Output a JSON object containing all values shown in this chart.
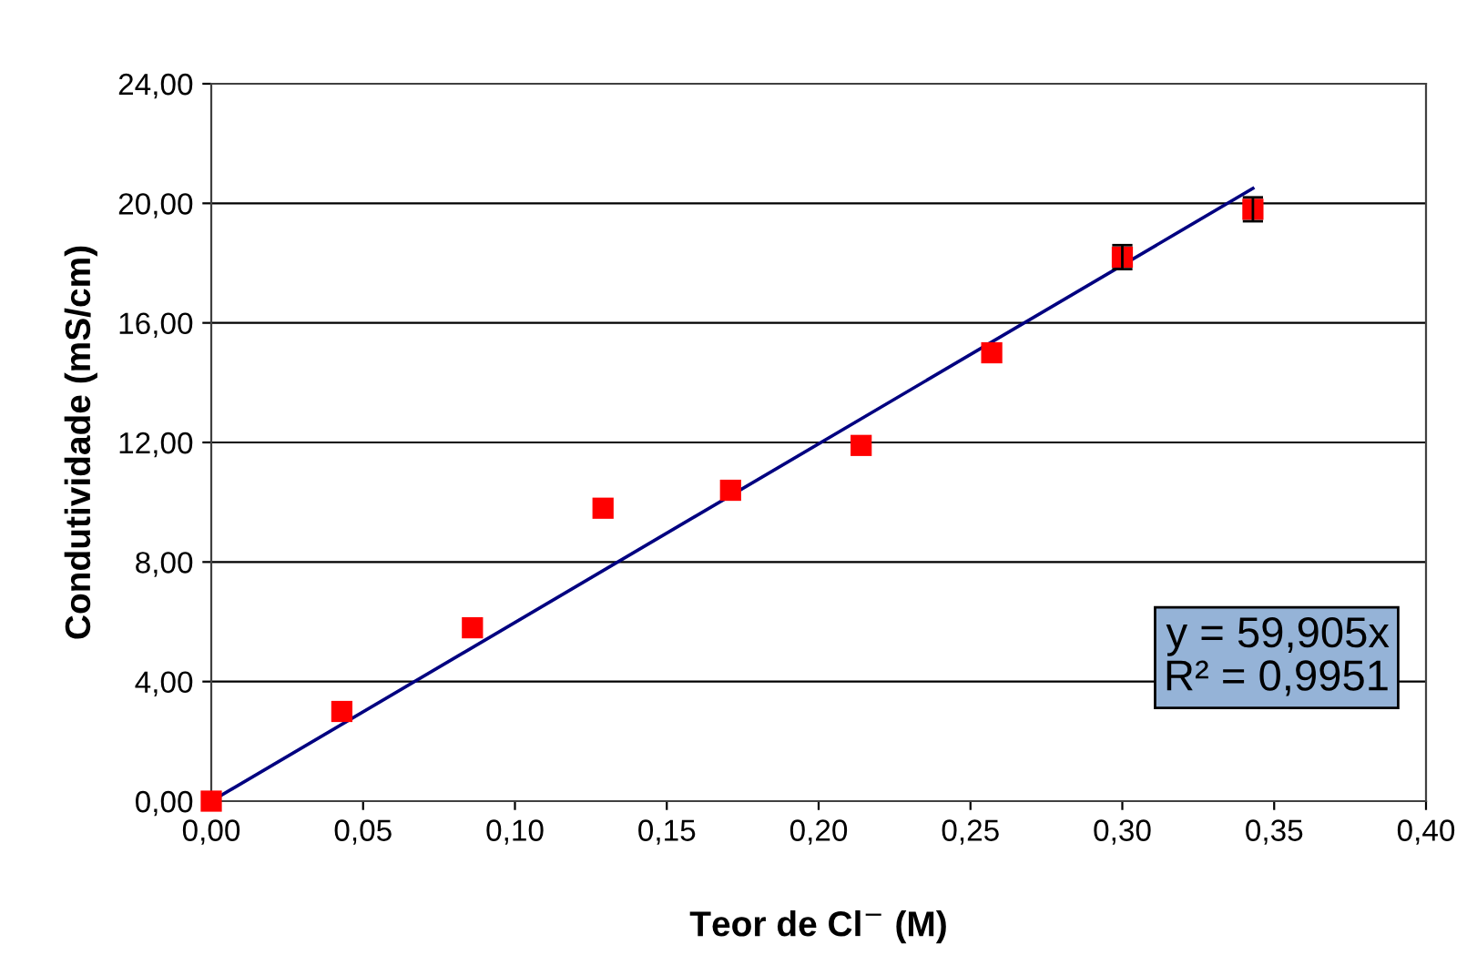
{
  "chart_data": {
    "type": "scatter",
    "xlabel": "Teor de Cl$^{−}$ (M)",
    "ylabel": "Condutividade (mS/cm)",
    "xlim": [
      0,
      0.4
    ],
    "ylim": [
      0,
      24
    ],
    "xticks": [
      {
        "value": 0,
        "label": "0,00"
      },
      {
        "value": 0.05,
        "label": "0,05"
      },
      {
        "value": 0.1,
        "label": "0,10"
      },
      {
        "value": 0.15,
        "label": "0,15"
      },
      {
        "value": 0.2,
        "label": "0,20"
      },
      {
        "value": 0.25,
        "label": "0,25"
      },
      {
        "value": 0.3,
        "label": "0,30"
      },
      {
        "value": 0.35,
        "label": "0,35"
      },
      {
        "value": 0.4,
        "label": "0,40"
      }
    ],
    "yticks": [
      {
        "value": 0,
        "label": "0,00"
      },
      {
        "value": 4,
        "label": "4,00"
      },
      {
        "value": 8,
        "label": "8,00"
      },
      {
        "value": 12,
        "label": "12,00"
      },
      {
        "value": 16,
        "label": "16,00"
      },
      {
        "value": 20,
        "label": "20,00"
      },
      {
        "value": 24,
        "label": "24,00"
      }
    ],
    "grid": "y",
    "marker": "square",
    "series": [
      {
        "color": "#ff0000",
        "x": [
          0,
          0.043,
          0.086,
          0.129,
          0.171,
          0.214,
          0.257,
          0.3,
          0.343
        ],
        "values": [
          0,
          3.0,
          5.8,
          9.8,
          10.4,
          11.9,
          15.0,
          18.2,
          19.8
        ],
        "errors": [
          null,
          null,
          null,
          null,
          null,
          null,
          null,
          0.4,
          0.4
        ]
      },
      {
        "type": "line",
        "color": "#000080",
        "x": [
          0,
          0.343
        ],
        "values": [
          0,
          20.5
        ],
        "line_style": "solid",
        "marker": "none"
      }
    ],
    "annotations": [
      "y = 59,905x\nR² = 0,9951"
    ]
  }
}
